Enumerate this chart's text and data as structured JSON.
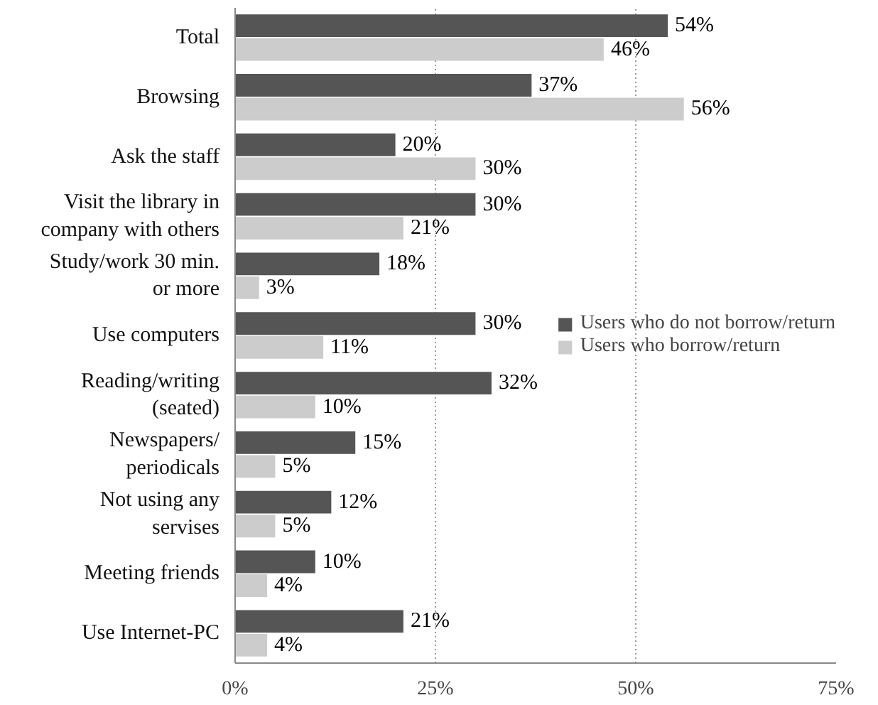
{
  "chart_data": {
    "type": "bar",
    "orientation": "horizontal",
    "categories": [
      "Total",
      "Browsing",
      "Ask the staff",
      "Visit the library in\ncompany with others",
      "Study/work 30 min.\nor more",
      "Use computers",
      "Reading/writing\n(seated)",
      "Newspapers/\nperiodicals",
      "Not using any\nservises",
      "Meeting friends",
      "Use Internet-PC"
    ],
    "series": [
      {
        "name": "Users who do not borrow/return",
        "color": "#555555",
        "values": [
          54,
          37,
          20,
          30,
          18,
          30,
          32,
          15,
          12,
          10,
          21
        ],
        "value_labels": [
          "54%",
          "37%",
          "20%",
          "30%",
          "18%",
          "30%",
          "32%",
          "15%",
          "12%",
          "10%",
          "21%"
        ]
      },
      {
        "name": "Users who borrow/return",
        "color": "#cccccc",
        "values": [
          46,
          56,
          30,
          21,
          3,
          11,
          10,
          5,
          5,
          4,
          4
        ],
        "value_labels": [
          "46%",
          "56%",
          "30%",
          "21%",
          "3%",
          "11%",
          "10%",
          "5%",
          "5%",
          "4%",
          "4%"
        ]
      }
    ],
    "xlim": [
      0,
      75
    ],
    "xticks": [
      {
        "value": 0,
        "label": "0%"
      },
      {
        "value": 25,
        "label": "25%"
      },
      {
        "value": 50,
        "label": "50%"
      },
      {
        "value": 75,
        "label": "75%"
      }
    ],
    "grid": "x",
    "legend": "right"
  }
}
